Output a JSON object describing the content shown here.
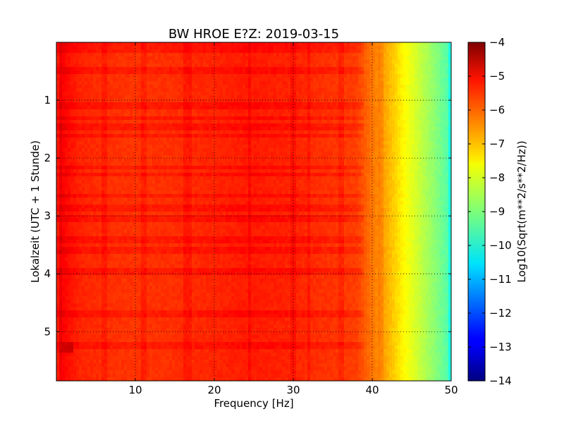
{
  "chart_data": {
    "type": "heatmap",
    "title": "BW HROE E?Z: 2019-03-15",
    "xlabel": "Frequency [Hz]",
    "ylabel": "Lokalzeit (UTC + 1 Stunde)",
    "colorbar_label": "Log10(Sqrt(m**2/s**2/Hz))",
    "xlim": [
      0,
      50
    ],
    "ylim": [
      5.85,
      0
    ],
    "y_inverted": true,
    "xticks": [
      10,
      20,
      30,
      40,
      50
    ],
    "yticks": [
      1,
      2,
      3,
      4,
      5
    ],
    "colorbar_ticks": [
      -4,
      -5,
      -6,
      -7,
      -8,
      -9,
      -10,
      -11,
      -12,
      -13,
      -14
    ],
    "clim": [
      -14,
      -4
    ],
    "colormap": "jet",
    "grid": true,
    "grid_style": "dotted",
    "frequency_profile": {
      "frequency_hz": [
        0,
        0.5,
        1,
        3,
        6,
        10,
        15,
        20,
        25,
        30,
        35,
        38,
        40,
        42,
        44,
        46,
        48,
        49.5,
        50
      ],
      "log10_amplitude": [
        -5.7,
        -5.1,
        -5.3,
        -5.6,
        -5.7,
        -5.75,
        -5.7,
        -5.6,
        -5.5,
        -5.6,
        -5.75,
        -5.85,
        -6.4,
        -7.0,
        -7.7,
        -8.3,
        -8.9,
        -9.4,
        -10.3
      ]
    },
    "vertical_features_hz": [
      6,
      11,
      16.5,
      17,
      24.5,
      30,
      32,
      36,
      41
    ],
    "horizontal_bands_hours": [
      0.05,
      0.15,
      0.5,
      1.1,
      1.3,
      1.45,
      1.6,
      2.15,
      2.3,
      2.65,
      2.85,
      3.05,
      3.4,
      3.6,
      3.95,
      4.7,
      5.25
    ],
    "notable_patch": {
      "frequency_hz": [
        0.2,
        2.2
      ],
      "hours": [
        5.2,
        5.35
      ],
      "log10_amplitude": -4.8
    }
  }
}
